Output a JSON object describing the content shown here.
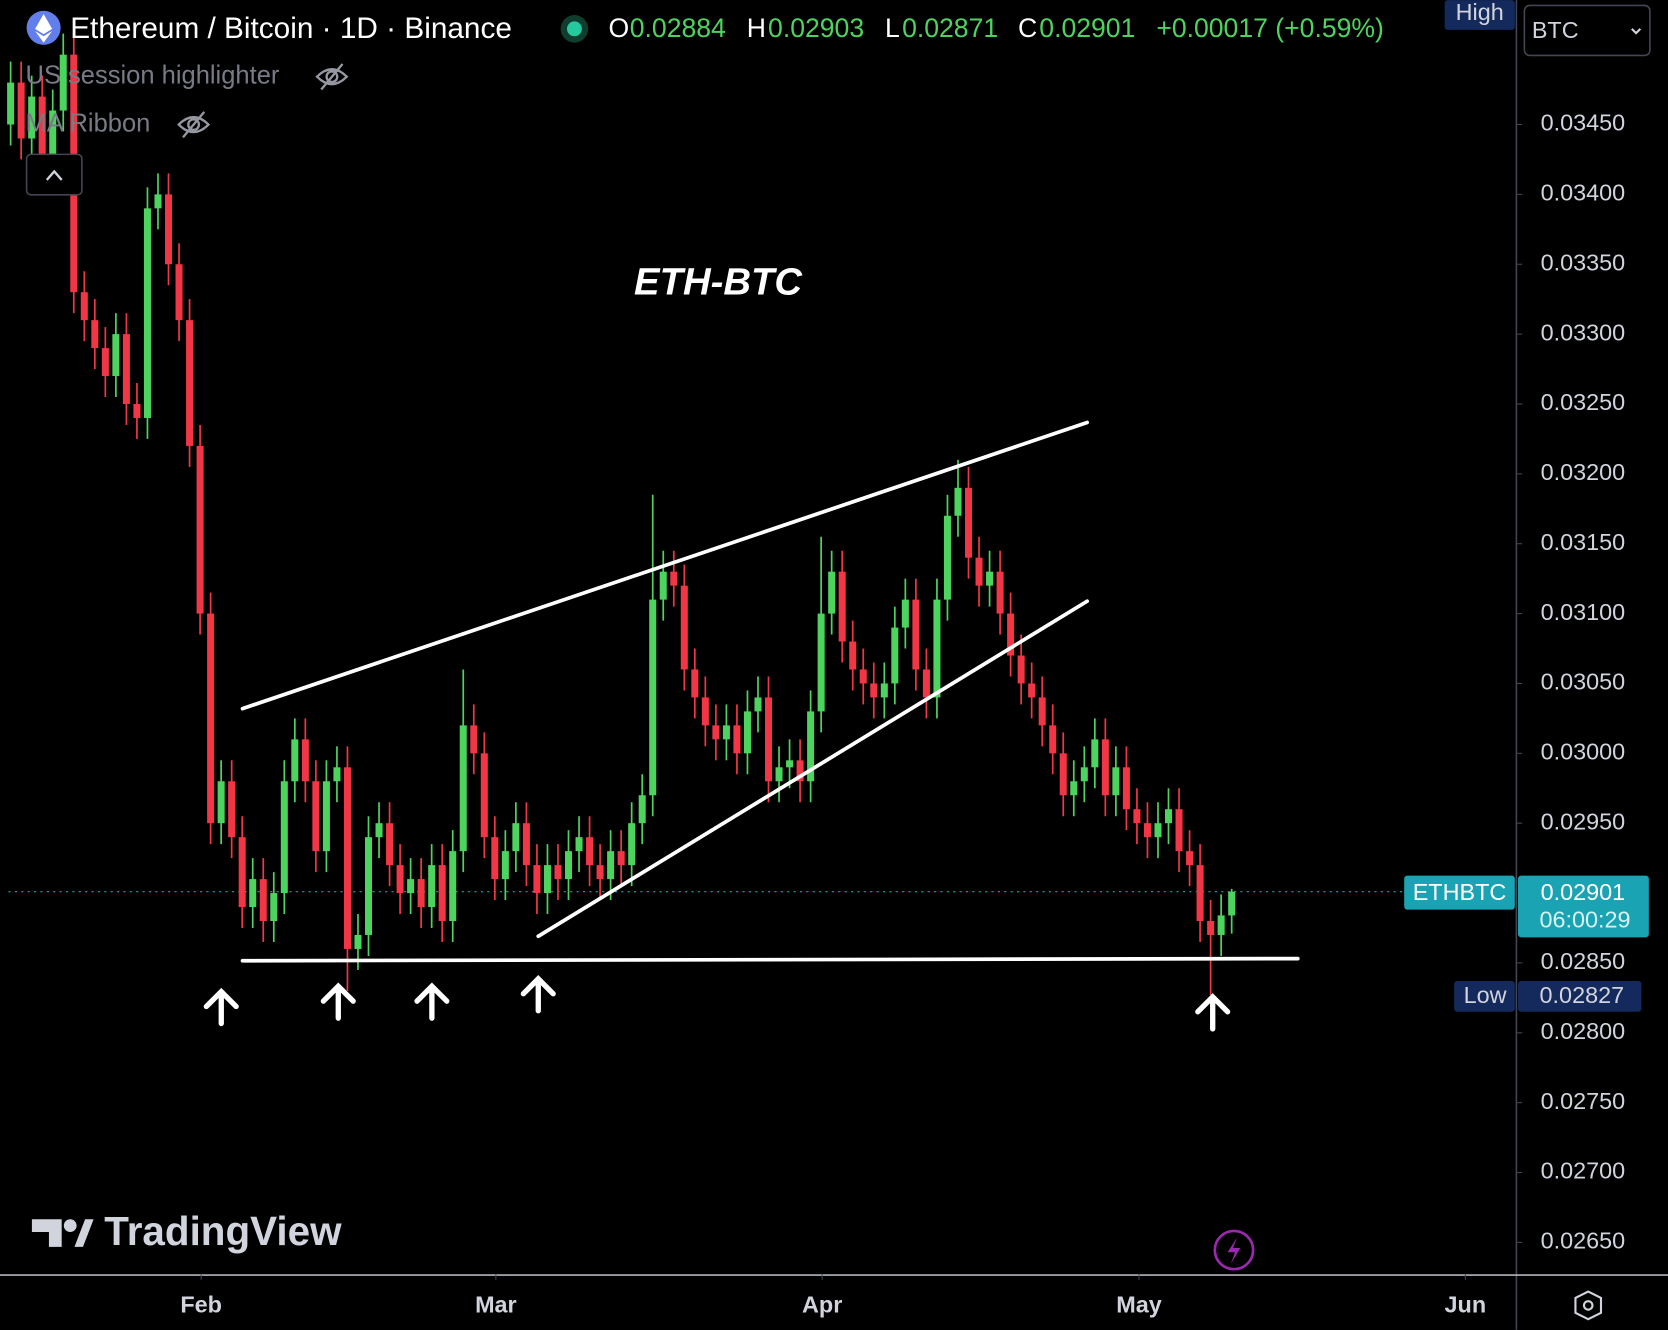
{
  "chart_data": {
    "type": "candlestick",
    "title": "Ethereum / Bitcoin · 1D · Binance",
    "ohlc_prefixes": [
      "O",
      "H",
      "L",
      "C"
    ],
    "change_label": "+0.00017 (+0.59%)",
    "indicators": [
      "US session highlighter",
      "MA Ribbon"
    ],
    "annotation": "ETH-BTC",
    "currency": "BTC",
    "high_label": "High",
    "low_label": "Low",
    "timer": "06:00:29",
    "brand": "TradingView",
    "xlim": [
      -0.2,
      143
    ],
    "xticks": [
      {
        "value": 18.1,
        "label": "Feb"
      },
      {
        "value": 46.1,
        "label": "Mar"
      },
      {
        "value": 77.1,
        "label": "Apr"
      },
      {
        "value": 107.2,
        "label": "May"
      },
      {
        "value": 138.2,
        "label": "Jun"
      }
    ],
    "ylim": [
      0.02627,
      0.03539
    ],
    "yticks": [
      {
        "value": 0.0345,
        "label": "0.03450"
      },
      {
        "value": 0.034,
        "label": "0.03400"
      },
      {
        "value": 0.0335,
        "label": "0.03350"
      },
      {
        "value": 0.033,
        "label": "0.03300"
      },
      {
        "value": 0.0325,
        "label": "0.03250"
      },
      {
        "value": 0.032,
        "label": "0.03200"
      },
      {
        "value": 0.0315,
        "label": "0.03150"
      },
      {
        "value": 0.031,
        "label": "0.03100"
      },
      {
        "value": 0.0305,
        "label": "0.03050"
      },
      {
        "value": 0.03,
        "label": "0.03000"
      },
      {
        "value": 0.0295,
        "label": "0.02950"
      },
      {
        "value": 0.0285,
        "label": "0.02850"
      },
      {
        "value": 0.028,
        "label": "0.02800"
      },
      {
        "value": 0.0275,
        "label": "0.02750"
      },
      {
        "value": 0.027,
        "label": "0.02700"
      },
      {
        "value": 0.0265,
        "label": "0.02650"
      }
    ],
    "series": [
      {
        "name": "ETHBTC",
        "up_color": "#4cd45e",
        "down_color": "#f23645",
        "open": [
          0.0345,
          0.0348,
          0.0344,
          0.0347,
          0.0342,
          0.0346,
          0.035,
          0.0333,
          0.0331,
          0.0329,
          0.0327,
          0.033,
          0.0325,
          0.0324,
          0.0339,
          0.034,
          0.0335,
          0.0331,
          0.0322,
          0.031,
          0.0295,
          0.0298,
          0.0294,
          0.0289,
          0.0291,
          0.0288,
          0.029,
          0.0298,
          0.0301,
          0.0298,
          0.0293,
          0.0298,
          0.0299,
          0.0286,
          0.0287,
          0.0294,
          0.0295,
          0.0292,
          0.029,
          0.0291,
          0.0289,
          0.0292,
          0.0288,
          0.0293,
          0.0302,
          0.03,
          0.0294,
          0.0291,
          0.0293,
          0.0295,
          0.0292,
          0.029,
          0.0292,
          0.0291,
          0.0293,
          0.0294,
          0.0292,
          0.0291,
          0.0293,
          0.0292,
          0.0295,
          0.0297,
          0.0311,
          0.0313,
          0.0312,
          0.0306,
          0.0304,
          0.0302,
          0.0301,
          0.0302,
          0.03,
          0.0303,
          0.0304,
          0.0298,
          0.0299,
          0.02995,
          0.0298,
          0.0303,
          0.031,
          0.0313,
          0.0308,
          0.0306,
          0.0305,
          0.0304,
          0.0305,
          0.0309,
          0.0311,
          0.0306,
          0.0304,
          0.0311,
          0.0317,
          0.0319,
          0.0314,
          0.0312,
          0.0313,
          0.031,
          0.0307,
          0.0305,
          0.0304,
          0.0302,
          0.03,
          0.0297,
          0.0298,
          0.0299,
          0.0301,
          0.0297,
          0.0299,
          0.0296,
          0.0295,
          0.0294,
          0.0295,
          0.0296,
          0.0293,
          0.0292,
          0.0288,
          0.0287,
          0.02884
        ],
        "high": [
          0.03495,
          0.03495,
          0.03485,
          0.03485,
          0.03475,
          0.03515,
          0.03515,
          0.03345,
          0.03325,
          0.03305,
          0.03315,
          0.03315,
          0.03265,
          0.03405,
          0.03415,
          0.03415,
          0.03365,
          0.03325,
          0.03235,
          0.03115,
          0.02995,
          0.02995,
          0.02955,
          0.02925,
          0.02925,
          0.02915,
          0.02995,
          0.03025,
          0.03025,
          0.02995,
          0.02995,
          0.03005,
          0.03005,
          0.02885,
          0.02955,
          0.02965,
          0.02965,
          0.02935,
          0.02925,
          0.02925,
          0.02935,
          0.02935,
          0.02945,
          0.0306,
          0.03035,
          0.03015,
          0.02955,
          0.02945,
          0.02965,
          0.02965,
          0.02935,
          0.02935,
          0.02935,
          0.02945,
          0.02955,
          0.02955,
          0.02935,
          0.02945,
          0.02945,
          0.02965,
          0.02985,
          0.03185,
          0.03145,
          0.03145,
          0.03135,
          0.03075,
          0.03055,
          0.03035,
          0.03035,
          0.03035,
          0.03045,
          0.03055,
          0.03055,
          0.03005,
          0.0301,
          0.0301,
          0.03045,
          0.03155,
          0.03145,
          0.03145,
          0.03095,
          0.03075,
          0.03065,
          0.03065,
          0.03105,
          0.03125,
          0.03125,
          0.03075,
          0.03125,
          0.03185,
          0.0321,
          0.03205,
          0.03155,
          0.03145,
          0.03145,
          0.03115,
          0.03085,
          0.03065,
          0.03055,
          0.03035,
          0.03015,
          0.02995,
          0.03005,
          0.03025,
          0.03025,
          0.03005,
          0.03005,
          0.02975,
          0.02965,
          0.02965,
          0.02975,
          0.02975,
          0.02945,
          0.02935,
          0.02895,
          0.02899,
          0.02903
        ],
        "low": [
          0.03435,
          0.03425,
          0.03425,
          0.03405,
          0.03405,
          0.03445,
          0.03315,
          0.03295,
          0.03275,
          0.03255,
          0.03255,
          0.03235,
          0.03225,
          0.03225,
          0.03375,
          0.03335,
          0.03295,
          0.03205,
          0.03085,
          0.02935,
          0.02935,
          0.02925,
          0.02875,
          0.02875,
          0.02865,
          0.02865,
          0.02885,
          0.02965,
          0.02965,
          0.02915,
          0.02915,
          0.02965,
          0.0283,
          0.02845,
          0.02855,
          0.02925,
          0.02905,
          0.02885,
          0.02885,
          0.02875,
          0.02875,
          0.02865,
          0.02865,
          0.02915,
          0.02985,
          0.02925,
          0.02895,
          0.02895,
          0.02915,
          0.02905,
          0.02885,
          0.02885,
          0.02895,
          0.02895,
          0.02915,
          0.02905,
          0.02895,
          0.02895,
          0.02905,
          0.02905,
          0.02935,
          0.02955,
          0.03095,
          0.03105,
          0.03045,
          0.03025,
          0.03005,
          0.02995,
          0.02995,
          0.02985,
          0.02985,
          0.03015,
          0.02965,
          0.02965,
          0.02975,
          0.02965,
          0.02965,
          0.03015,
          0.03085,
          0.03065,
          0.03045,
          0.03035,
          0.03025,
          0.03025,
          0.03035,
          0.03075,
          0.03045,
          0.03025,
          0.03025,
          0.03095,
          0.03155,
          0.03125,
          0.03105,
          0.03105,
          0.03085,
          0.03055,
          0.03035,
          0.03025,
          0.03005,
          0.02985,
          0.02955,
          0.02955,
          0.02965,
          0.02975,
          0.02955,
          0.02955,
          0.02945,
          0.02935,
          0.02925,
          0.02925,
          0.02935,
          0.02915,
          0.02905,
          0.02865,
          0.02827,
          0.02855,
          0.02871
        ],
        "close": [
          0.0348,
          0.0344,
          0.0347,
          0.0342,
          0.0346,
          0.035,
          0.0333,
          0.0331,
          0.0329,
          0.0327,
          0.033,
          0.0325,
          0.0324,
          0.0339,
          0.034,
          0.0335,
          0.0331,
          0.0322,
          0.031,
          0.0295,
          0.0298,
          0.0294,
          0.0289,
          0.0291,
          0.0288,
          0.029,
          0.0298,
          0.0301,
          0.0298,
          0.0293,
          0.0298,
          0.0299,
          0.0286,
          0.0287,
          0.0294,
          0.0295,
          0.0292,
          0.029,
          0.0291,
          0.0289,
          0.0292,
          0.0288,
          0.0293,
          0.0302,
          0.03,
          0.0294,
          0.0291,
          0.0293,
          0.0295,
          0.0292,
          0.029,
          0.0292,
          0.0291,
          0.0293,
          0.0294,
          0.0292,
          0.0291,
          0.0293,
          0.0292,
          0.0295,
          0.0297,
          0.0311,
          0.0313,
          0.0312,
          0.0306,
          0.0304,
          0.0302,
          0.0301,
          0.0302,
          0.03,
          0.0303,
          0.0304,
          0.0298,
          0.0299,
          0.02995,
          0.0298,
          0.0303,
          0.031,
          0.0313,
          0.0308,
          0.0306,
          0.0305,
          0.0304,
          0.0305,
          0.0309,
          0.0311,
          0.0306,
          0.0304,
          0.0311,
          0.0317,
          0.0319,
          0.0314,
          0.0312,
          0.0313,
          0.031,
          0.0307,
          0.0305,
          0.0304,
          0.0302,
          0.03,
          0.0297,
          0.0298,
          0.0299,
          0.0301,
          0.0297,
          0.0299,
          0.0296,
          0.0295,
          0.0294,
          0.0295,
          0.0296,
          0.0293,
          0.0292,
          0.0288,
          0.0287,
          0.02884,
          0.02901
        ]
      }
    ]
  }
}
